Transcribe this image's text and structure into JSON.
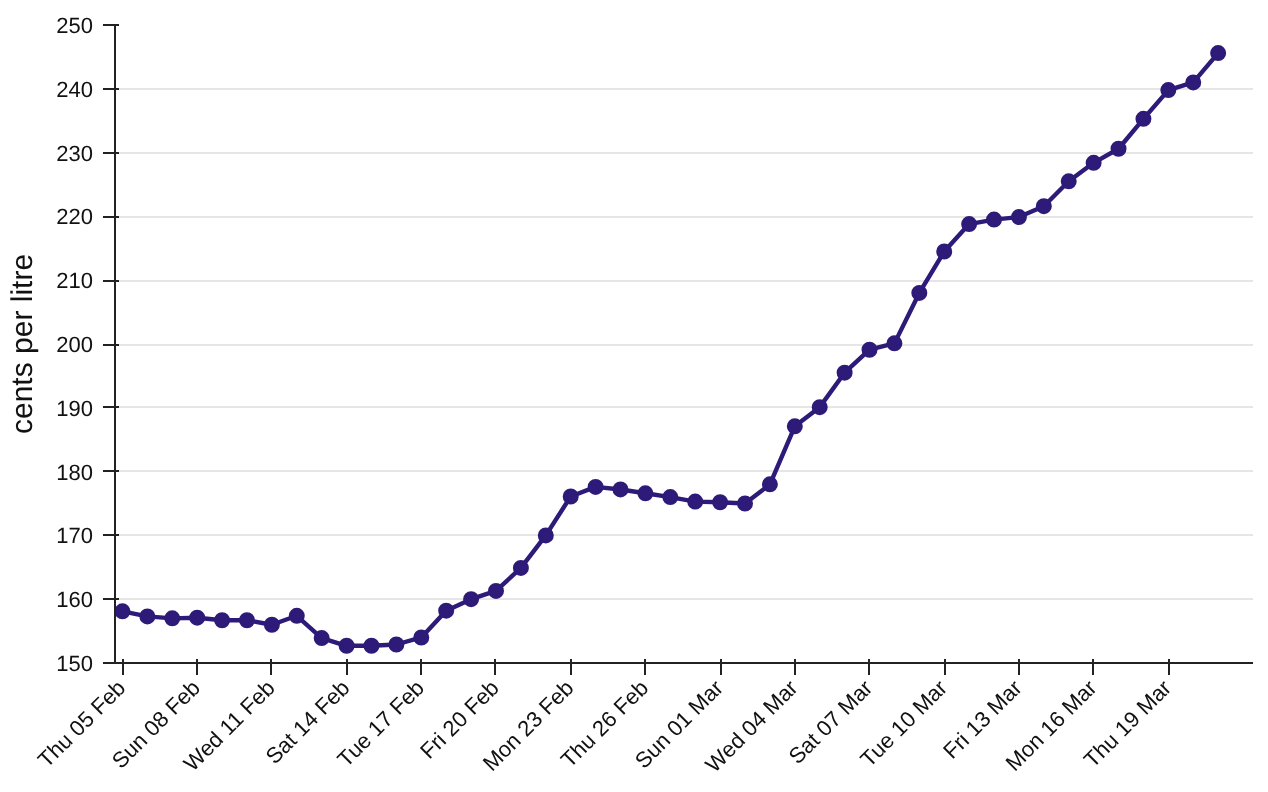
{
  "chart_data": {
    "type": "line",
    "ylabel": "cents per litre",
    "categories": [
      "Thu 05 Feb",
      null,
      null,
      "Sun 08 Feb",
      null,
      null,
      "Wed 11 Feb",
      null,
      null,
      "Sat 14 Feb",
      null,
      null,
      "Tue 17 Feb",
      null,
      null,
      "Fri 20 Feb",
      null,
      null,
      "Mon 23 Feb",
      null,
      null,
      "Thu 26 Feb",
      null,
      null,
      "Sun 01 Mar",
      null,
      null,
      "Wed 04 Mar",
      null,
      null,
      "Sat 07 Mar",
      null,
      null,
      "Tue 10 Mar",
      null,
      null,
      "Fri 13 Mar",
      null,
      null,
      "Mon 16 Mar",
      null,
      null,
      "Thu 19 Mar",
      null,
      null
    ],
    "series": [
      {
        "color": "#2e1a78",
        "values": [
          158.1,
          157.3,
          157.0,
          157.1,
          156.7,
          156.7,
          156.0,
          157.4,
          153.9,
          152.7,
          152.7,
          152.9,
          154.0,
          158.2,
          160.0,
          161.3,
          164.9,
          170.0,
          176.1,
          177.6,
          177.2,
          176.6,
          176.0,
          175.3,
          175.2,
          175.0,
          178.0,
          187.1,
          190.1,
          195.5,
          199.1,
          200.1,
          208.0,
          214.5,
          218.8,
          219.5,
          219.9,
          221.6,
          225.5,
          228.4,
          230.6,
          235.3,
          239.8,
          241.0,
          245.6
        ]
      }
    ],
    "ylim": [
      150,
      250
    ],
    "yticks": [
      150,
      160,
      170,
      180,
      190,
      200,
      210,
      220,
      230,
      240,
      250
    ],
    "grid": "y",
    "marker": "circle",
    "line_style": "solid"
  }
}
